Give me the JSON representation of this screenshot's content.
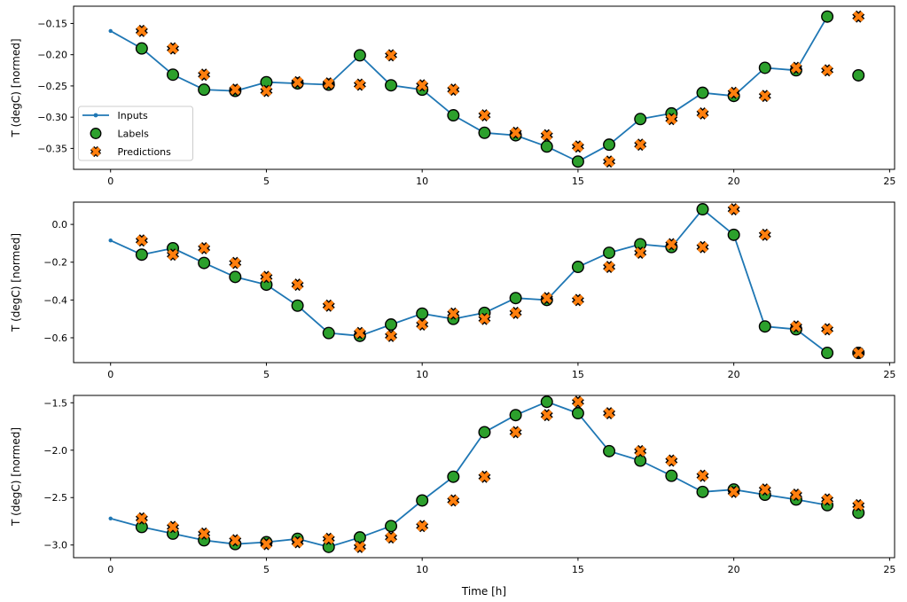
{
  "figure": {
    "background": "#ffffff",
    "xlabel": "Time [h]",
    "ylabel": "T (degC) [normed]",
    "legend": {
      "position": "upper-left-of-first-subplot",
      "items": [
        {
          "label": "Inputs",
          "type": "line-with-dot",
          "color": "#1f77b4"
        },
        {
          "label": "Labels",
          "type": "circle",
          "color": "#2ca02c"
        },
        {
          "label": "Predictions",
          "type": "x",
          "color": "#ff7f0e"
        }
      ]
    },
    "colors": {
      "inputs": "#1f77b4",
      "labels": "#2ca02c",
      "predictions": "#ff7f0e",
      "marker_edge": "#000000",
      "spine": "#000000",
      "legend_border": "#cccccc"
    }
  },
  "chart_data": [
    {
      "type": "line",
      "title": "",
      "ylabel": "T (degC) [normed]",
      "xlabel": "",
      "grid": false,
      "xlim": [
        -1.187,
        25.16
      ],
      "ylim": [
        -0.3835,
        -0.1224
      ],
      "xticks": [
        0,
        5,
        10,
        15,
        20,
        25
      ],
      "xtick_labels": [
        "0",
        "5",
        "10",
        "15",
        "20",
        "25"
      ],
      "yticks": [
        -0.15,
        -0.2,
        -0.25,
        -0.3,
        -0.35
      ],
      "ytick_labels": [
        "−0.15",
        "−0.20",
        "−0.25",
        "−0.30",
        "−0.35"
      ],
      "series": [
        {
          "name": "Inputs",
          "type": "line",
          "marker": "dot",
          "color": "#1f77b4",
          "x": [
            0,
            1,
            2,
            3,
            4,
            5,
            6,
            7,
            8,
            9,
            10,
            11,
            12,
            13,
            14,
            15,
            16,
            17,
            18,
            19,
            20,
            21,
            22,
            23
          ],
          "y": [
            -0.162,
            -0.19,
            -0.232,
            -0.256,
            -0.258,
            -0.244,
            -0.246,
            -0.248,
            -0.201,
            -0.249,
            -0.256,
            -0.297,
            -0.325,
            -0.329,
            -0.347,
            -0.371,
            -0.344,
            -0.303,
            -0.294,
            -0.261,
            -0.266,
            -0.221,
            -0.225,
            -0.139
          ]
        },
        {
          "name": "Labels",
          "type": "scatter",
          "marker": "circle",
          "color": "#2ca02c",
          "x": [
            1,
            2,
            3,
            4,
            5,
            6,
            7,
            8,
            9,
            10,
            11,
            12,
            13,
            14,
            15,
            16,
            17,
            18,
            19,
            20,
            21,
            22,
            23,
            24
          ],
          "y": [
            -0.19,
            -0.232,
            -0.256,
            -0.258,
            -0.244,
            -0.246,
            -0.248,
            -0.201,
            -0.249,
            -0.256,
            -0.297,
            -0.325,
            -0.329,
            -0.347,
            -0.371,
            -0.344,
            -0.303,
            -0.294,
            -0.261,
            -0.266,
            -0.221,
            -0.225,
            -0.139,
            -0.233
          ]
        },
        {
          "name": "Predictions",
          "type": "scatter",
          "marker": "X",
          "color": "#ff7f0e",
          "x": [
            1,
            2,
            3,
            4,
            5,
            6,
            7,
            8,
            9,
            10,
            11,
            12,
            13,
            14,
            15,
            16,
            17,
            18,
            19,
            20,
            21,
            22,
            23,
            24
          ],
          "y": [
            -0.162,
            -0.19,
            -0.232,
            -0.256,
            -0.258,
            -0.244,
            -0.246,
            -0.248,
            -0.201,
            -0.249,
            -0.256,
            -0.297,
            -0.325,
            -0.329,
            -0.347,
            -0.371,
            -0.344,
            -0.303,
            -0.294,
            -0.261,
            -0.266,
            -0.221,
            -0.225,
            -0.139
          ]
        }
      ]
    },
    {
      "type": "line",
      "title": "",
      "ylabel": "T (degC) [normed]",
      "xlabel": "",
      "grid": false,
      "xlim": [
        -1.187,
        25.16
      ],
      "ylim": [
        -0.7315,
        0.1178
      ],
      "xticks": [
        0,
        5,
        10,
        15,
        20,
        25
      ],
      "xtick_labels": [
        "0",
        "5",
        "10",
        "15",
        "20",
        "25"
      ],
      "yticks": [
        0.0,
        -0.2,
        -0.4,
        -0.6
      ],
      "ytick_labels": [
        "0.0",
        "−0.2",
        "−0.4",
        "−0.6"
      ],
      "series": [
        {
          "name": "Inputs",
          "type": "line",
          "marker": "dot",
          "color": "#1f77b4",
          "x": [
            0,
            1,
            2,
            3,
            4,
            5,
            6,
            7,
            8,
            9,
            10,
            11,
            12,
            13,
            14,
            15,
            16,
            17,
            18,
            19,
            20,
            21,
            22,
            23
          ],
          "y": [
            -0.085,
            -0.16,
            -0.126,
            -0.204,
            -0.278,
            -0.319,
            -0.43,
            -0.575,
            -0.59,
            -0.53,
            -0.472,
            -0.5,
            -0.468,
            -0.39,
            -0.4,
            -0.225,
            -0.15,
            -0.105,
            -0.12,
            0.08,
            -0.055,
            -0.54,
            -0.555,
            -0.68
          ]
        },
        {
          "name": "Labels",
          "type": "scatter",
          "marker": "circle",
          "color": "#2ca02c",
          "x": [
            1,
            2,
            3,
            4,
            5,
            6,
            7,
            8,
            9,
            10,
            11,
            12,
            13,
            14,
            15,
            16,
            17,
            18,
            19,
            20,
            21,
            22,
            23,
            24
          ],
          "y": [
            -0.16,
            -0.126,
            -0.204,
            -0.278,
            -0.319,
            -0.43,
            -0.575,
            -0.59,
            -0.53,
            -0.472,
            -0.5,
            -0.468,
            -0.39,
            -0.4,
            -0.225,
            -0.15,
            -0.105,
            -0.12,
            0.08,
            -0.055,
            -0.54,
            -0.555,
            -0.68,
            -0.68
          ]
        },
        {
          "name": "Predictions",
          "type": "scatter",
          "marker": "X",
          "color": "#ff7f0e",
          "x": [
            1,
            2,
            3,
            4,
            5,
            6,
            7,
            8,
            9,
            10,
            11,
            12,
            13,
            14,
            15,
            16,
            17,
            18,
            19,
            20,
            21,
            22,
            23,
            24
          ],
          "y": [
            -0.085,
            -0.16,
            -0.126,
            -0.204,
            -0.278,
            -0.319,
            -0.43,
            -0.575,
            -0.59,
            -0.53,
            -0.472,
            -0.5,
            -0.468,
            -0.39,
            -0.4,
            -0.225,
            -0.15,
            -0.105,
            -0.12,
            0.08,
            -0.055,
            -0.54,
            -0.555,
            -0.68
          ]
        }
      ]
    },
    {
      "type": "line",
      "title": "",
      "ylabel": "T (degC) [normed]",
      "xlabel": "Time [h]",
      "grid": false,
      "xlim": [
        -1.187,
        25.16
      ],
      "ylim": [
        -3.1335,
        -1.4225
      ],
      "xticks": [
        0,
        5,
        10,
        15,
        20,
        25
      ],
      "xtick_labels": [
        "0",
        "5",
        "10",
        "15",
        "20",
        "25"
      ],
      "yticks": [
        -1.5,
        -2.0,
        -2.5,
        -3.0
      ],
      "ytick_labels": [
        "−1.5",
        "−2.0",
        "−2.5",
        "−3.0"
      ],
      "series": [
        {
          "name": "Inputs",
          "type": "line",
          "marker": "dot",
          "color": "#1f77b4",
          "x": [
            0,
            1,
            2,
            3,
            4,
            5,
            6,
            7,
            8,
            9,
            10,
            11,
            12,
            13,
            14,
            15,
            16,
            17,
            18,
            19,
            20,
            21,
            22,
            23
          ],
          "y": [
            -2.72,
            -2.81,
            -2.88,
            -2.95,
            -2.99,
            -2.97,
            -2.935,
            -3.02,
            -2.92,
            -2.8,
            -2.53,
            -2.28,
            -1.81,
            -1.63,
            -1.49,
            -1.61,
            -2.01,
            -2.11,
            -2.27,
            -2.44,
            -2.415,
            -2.47,
            -2.52,
            -2.58
          ]
        },
        {
          "name": "Labels",
          "type": "scatter",
          "marker": "circle",
          "color": "#2ca02c",
          "x": [
            1,
            2,
            3,
            4,
            5,
            6,
            7,
            8,
            9,
            10,
            11,
            12,
            13,
            14,
            15,
            16,
            17,
            18,
            19,
            20,
            21,
            22,
            23,
            24
          ],
          "y": [
            -2.81,
            -2.88,
            -2.95,
            -2.99,
            -2.97,
            -2.935,
            -3.02,
            -2.92,
            -2.8,
            -2.53,
            -2.28,
            -1.81,
            -1.63,
            -1.49,
            -1.61,
            -2.01,
            -2.11,
            -2.27,
            -2.44,
            -2.415,
            -2.47,
            -2.52,
            -2.58,
            -2.66
          ]
        },
        {
          "name": "Predictions",
          "type": "scatter",
          "marker": "X",
          "color": "#ff7f0e",
          "x": [
            1,
            2,
            3,
            4,
            5,
            6,
            7,
            8,
            9,
            10,
            11,
            12,
            13,
            14,
            15,
            16,
            17,
            18,
            19,
            20,
            21,
            22,
            23,
            24
          ],
          "y": [
            -2.72,
            -2.81,
            -2.88,
            -2.95,
            -2.99,
            -2.97,
            -2.935,
            -3.02,
            -2.92,
            -2.8,
            -2.53,
            -2.28,
            -1.81,
            -1.63,
            -1.49,
            -1.61,
            -2.01,
            -2.11,
            -2.27,
            -2.44,
            -2.415,
            -2.47,
            -2.52,
            -2.58
          ]
        }
      ]
    }
  ]
}
